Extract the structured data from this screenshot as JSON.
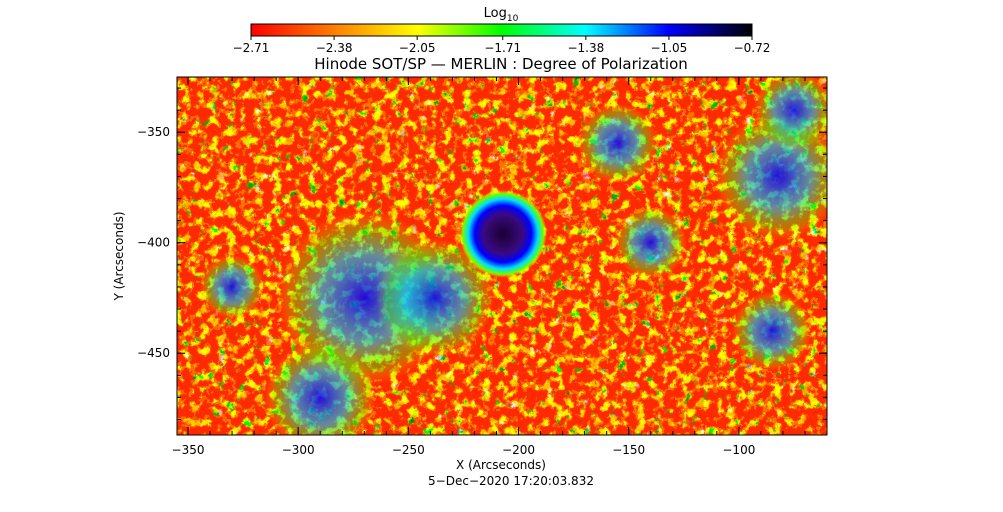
{
  "chart_data": {
    "type": "heatmap",
    "title": "Hinode SOT/SP — MERLIN : Degree of Polarization",
    "xlabel": "X (Arcseconds)",
    "ylabel": "Y (Arcseconds)",
    "timestamp": "5−Dec−2020 17:20:03.832",
    "xlim": [
      -355,
      -60
    ],
    "ylim": [
      -487,
      -325
    ],
    "x_ticks": [
      -350,
      -300,
      -250,
      -200,
      -150,
      -100
    ],
    "y_ticks": [
      -350,
      -400,
      -450
    ],
    "x_tick_labels": [
      "−350",
      "−300",
      "−250",
      "−200",
      "−150",
      "−100"
    ],
    "y_tick_labels": [
      "−350",
      "−400",
      "−450"
    ],
    "colorbar": {
      "label_main": "Log",
      "label_sub": "10",
      "min": -2.71,
      "max": -0.72,
      "ticks": [
        -2.71,
        -2.38,
        -2.05,
        -1.71,
        -1.38,
        -1.05,
        -0.72
      ],
      "tick_labels": [
        "−2.71",
        "−2.38",
        "−2.05",
        "−1.71",
        "−1.38",
        "−1.05",
        "−0.72"
      ],
      "colors": [
        "#ff0000",
        "#ff7f00",
        "#ffff00",
        "#00ff00",
        "#00ffff",
        "#0000ff",
        "#000000"
      ]
    },
    "features": [
      {
        "name": "sunspot",
        "x": -207,
        "y": -396,
        "radius": 11,
        "value": -0.75
      },
      {
        "name": "network",
        "x": -270,
        "y": -425,
        "radius": 22,
        "value": -1.2
      },
      {
        "name": "network",
        "x": -238,
        "y": -425,
        "radius": 15,
        "value": -1.25
      },
      {
        "name": "network",
        "x": -290,
        "y": -470,
        "radius": 14,
        "value": -1.3
      },
      {
        "name": "network",
        "x": -155,
        "y": -355,
        "radius": 10,
        "value": -1.35
      },
      {
        "name": "network",
        "x": -140,
        "y": -400,
        "radius": 9,
        "value": -1.3
      },
      {
        "name": "network",
        "x": -82,
        "y": -370,
        "radius": 16,
        "value": -1.2
      },
      {
        "name": "network",
        "x": -75,
        "y": -340,
        "radius": 10,
        "value": -1.4
      },
      {
        "name": "network",
        "x": -85,
        "y": -440,
        "radius": 10,
        "value": -1.5
      },
      {
        "name": "network",
        "x": -330,
        "y": -420,
        "radius": 8,
        "value": -1.6
      }
    ]
  }
}
